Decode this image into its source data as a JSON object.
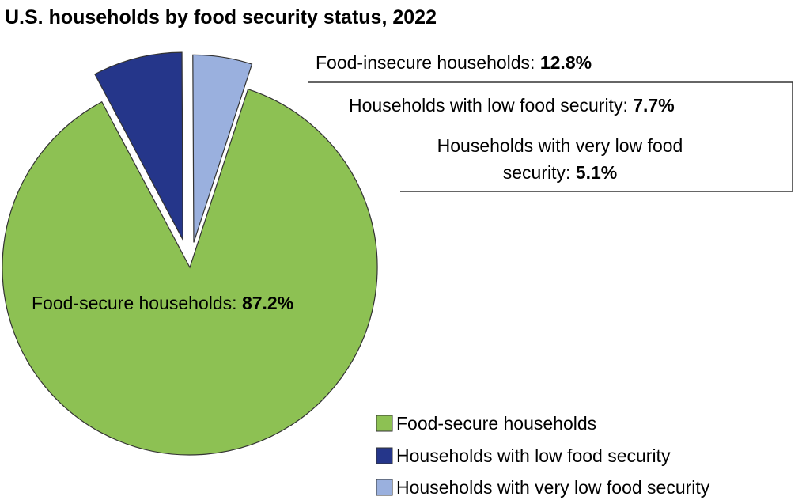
{
  "chart_data": {
    "type": "pie",
    "title": "U.S. households by food security status, 2022",
    "slices": [
      {
        "name": "Food-secure households",
        "value": 87.2,
        "color": "#8dc153"
      },
      {
        "name": "Households with low food security",
        "value": 7.7,
        "color": "#25368a"
      },
      {
        "name": "Households with very low food security",
        "value": 5.1,
        "color": "#9ab0de"
      }
    ],
    "labels": {
      "secure": {
        "text": "Food-secure households: ",
        "value": "87.2%"
      },
      "insecure": {
        "text": "Food-insecure households: ",
        "value": "12.8%"
      },
      "low": {
        "text": "Households with low food security: ",
        "value": "7.7%"
      },
      "very_low_line1": "Households with very low food",
      "very_low_line2": {
        "text": "security: ",
        "value": "5.1%"
      }
    },
    "legend": [
      {
        "label": "Food-secure households",
        "color": "#8dc153"
      },
      {
        "label": "Households with low food security",
        "color": "#25368a"
      },
      {
        "label": "Households with very low food security",
        "color": "#9ab0de"
      }
    ],
    "legend_position": "bottom-right",
    "exploded": "food-insecure slices"
  }
}
